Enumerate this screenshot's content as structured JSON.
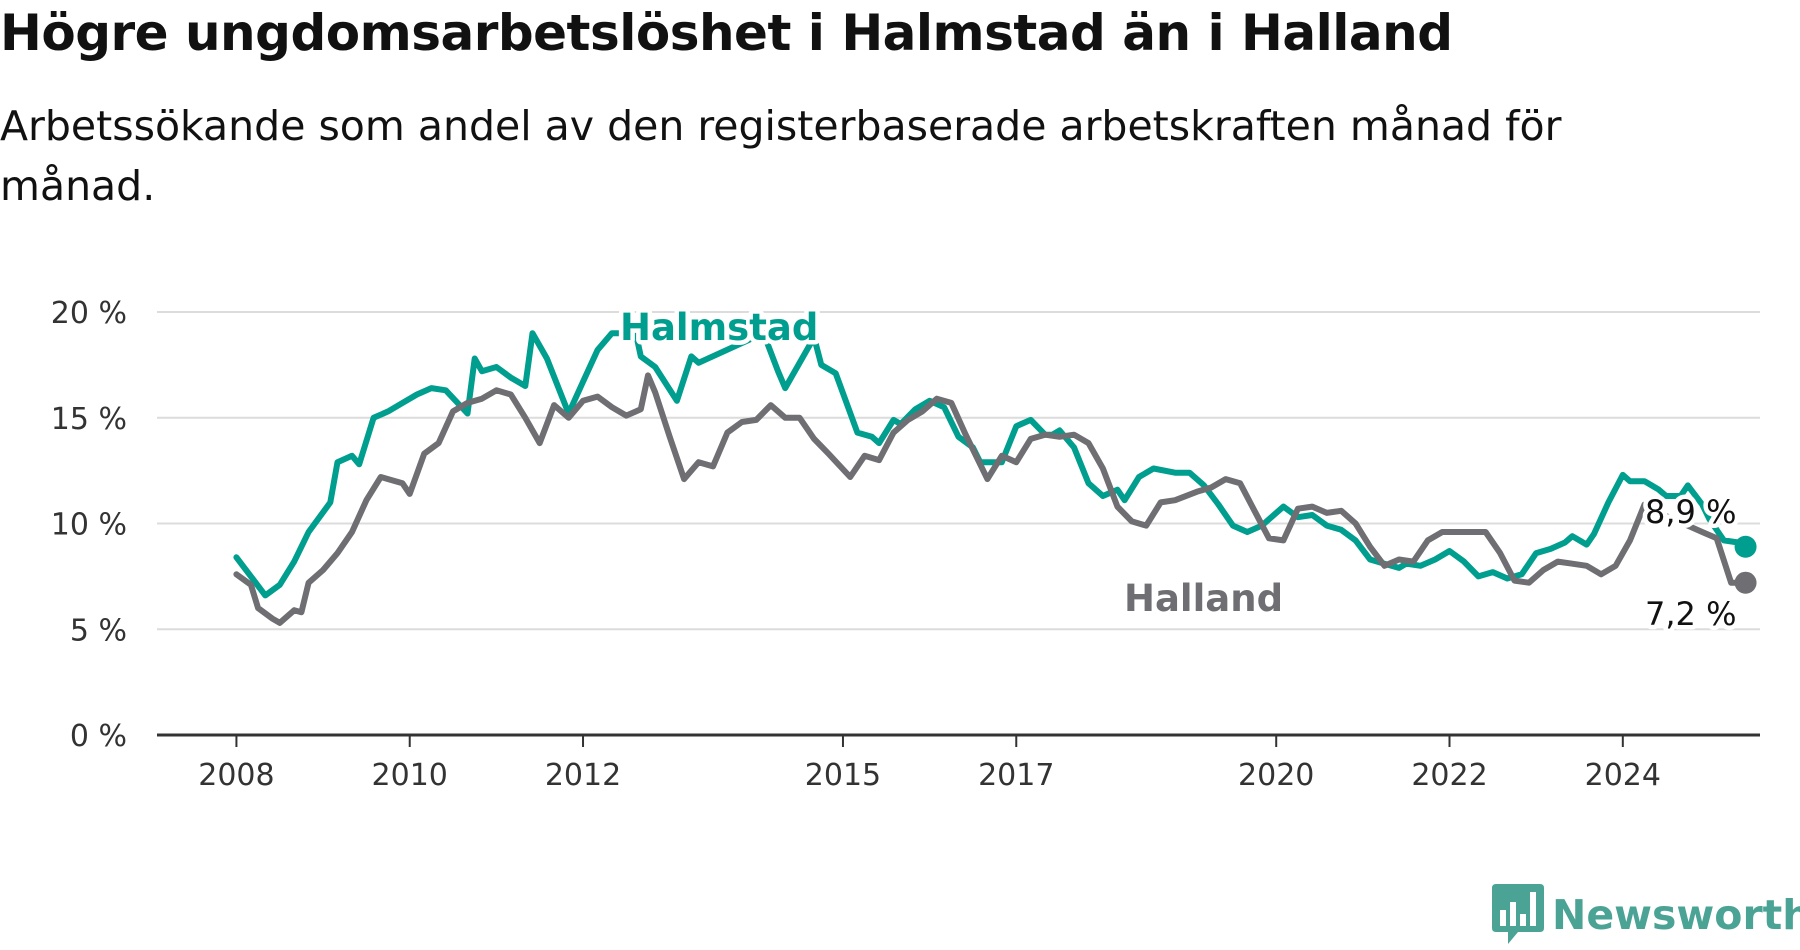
{
  "title": "Högre ungdomsarbetslöshet i Halmstad än i Halland",
  "subtitle": "Arbetssökande som andel av den registerbaserade arbetskraften månad för månad.",
  "brand": {
    "name": "Newsworthy",
    "logo_icon": "bar-chart-speech-bubble-icon",
    "color": "#4aa394"
  },
  "chart_data": {
    "type": "line",
    "title": "Högre ungdomsarbetslöshet i Halmstad än i Halland",
    "subtitle": "Arbetssökande som andel av den registerbaserade arbetskraften månad för månad.",
    "xlabel": "",
    "ylabel": "",
    "x_ticks": [
      {
        "year": 2008,
        "label": "2008"
      },
      {
        "year": 2010,
        "label": "2010"
      },
      {
        "year": 2012,
        "label": "2012"
      },
      {
        "year": 2015,
        "label": "2015"
      },
      {
        "year": 2017,
        "label": "2017"
      },
      {
        "year": 2020,
        "label": "2020"
      },
      {
        "year": 2022,
        "label": "2022"
      },
      {
        "year": 2024,
        "label": "2024"
      }
    ],
    "y_ticks": [
      {
        "value": 0,
        "label": "0 %"
      },
      {
        "value": 5,
        "label": "5 %"
      },
      {
        "value": 10,
        "label": "10 %"
      },
      {
        "value": 15,
        "label": "15 %"
      },
      {
        "value": 20,
        "label": "20 %"
      }
    ],
    "xlim": [
      "2007-02",
      "2025-08"
    ],
    "ylim": [
      0,
      20
    ],
    "grid": "horizontal",
    "series": [
      {
        "name": "Halmstad",
        "color": "#009e8e",
        "end_label": "8,9 %",
        "values": [
          [
            "2008-01",
            8.4
          ],
          [
            "2008-03",
            7.5
          ],
          [
            "2008-05",
            6.6
          ],
          [
            "2008-07",
            7.1
          ],
          [
            "2008-09",
            8.2
          ],
          [
            "2008-11",
            9.6
          ],
          [
            "2009-02",
            11.0
          ],
          [
            "2009-03",
            12.9
          ],
          [
            "2009-05",
            13.2
          ],
          [
            "2009-06",
            12.8
          ],
          [
            "2009-08",
            15.0
          ],
          [
            "2009-10",
            15.3
          ],
          [
            "2009-12",
            15.7
          ],
          [
            "2010-02",
            16.1
          ],
          [
            "2010-04",
            16.4
          ],
          [
            "2010-06",
            16.3
          ],
          [
            "2010-09",
            15.2
          ],
          [
            "2010-10",
            17.8
          ],
          [
            "2010-11",
            17.2
          ],
          [
            "2011-01",
            17.4
          ],
          [
            "2011-03",
            16.9
          ],
          [
            "2011-05",
            16.5
          ],
          [
            "2011-06",
            19.0
          ],
          [
            "2011-08",
            17.8
          ],
          [
            "2011-11",
            15.2
          ],
          [
            "2012-01",
            16.7
          ],
          [
            "2012-03",
            18.2
          ],
          [
            "2012-05",
            19.0
          ],
          [
            "2012-07",
            19.0
          ],
          [
            "2012-08",
            19.5
          ],
          [
            "2012-09",
            17.9
          ],
          [
            "2012-11",
            17.4
          ],
          [
            "2013-02",
            15.8
          ],
          [
            "2013-04",
            17.9
          ],
          [
            "2013-05",
            17.6
          ],
          [
            "2014-02",
            19.0
          ],
          [
            "2014-04",
            17.2
          ],
          [
            "2014-05",
            16.4
          ],
          [
            "2014-09",
            18.8
          ],
          [
            "2014-10",
            17.5
          ],
          [
            "2014-12",
            17.1
          ],
          [
            "2015-03",
            14.3
          ],
          [
            "2015-05",
            14.1
          ],
          [
            "2015-06",
            13.8
          ],
          [
            "2015-08",
            14.9
          ],
          [
            "2015-09",
            14.7
          ],
          [
            "2015-11",
            15.4
          ],
          [
            "2016-01",
            15.8
          ],
          [
            "2016-03",
            15.5
          ],
          [
            "2016-05",
            14.1
          ],
          [
            "2016-07",
            13.6
          ],
          [
            "2016-08",
            12.9
          ],
          [
            "2016-11",
            12.9
          ],
          [
            "2017-01",
            14.6
          ],
          [
            "2017-03",
            14.9
          ],
          [
            "2017-05",
            14.2
          ],
          [
            "2017-06",
            14.2
          ],
          [
            "2017-07",
            14.4
          ],
          [
            "2017-09",
            13.6
          ],
          [
            "2017-11",
            11.9
          ],
          [
            "2018-01",
            11.3
          ],
          [
            "2018-03",
            11.6
          ],
          [
            "2018-04",
            11.1
          ],
          [
            "2018-06",
            12.2
          ],
          [
            "2018-08",
            12.6
          ],
          [
            "2018-11",
            12.4
          ],
          [
            "2019-01",
            12.4
          ],
          [
            "2019-03",
            11.8
          ],
          [
            "2019-05",
            10.9
          ],
          [
            "2019-07",
            9.9
          ],
          [
            "2019-09",
            9.6
          ],
          [
            "2019-11",
            9.9
          ],
          [
            "2020-02",
            10.8
          ],
          [
            "2020-04",
            10.3
          ],
          [
            "2020-06",
            10.4
          ],
          [
            "2020-08",
            9.9
          ],
          [
            "2020-10",
            9.7
          ],
          [
            "2020-12",
            9.2
          ],
          [
            "2021-02",
            8.3
          ],
          [
            "2021-04",
            8.1
          ],
          [
            "2021-06",
            7.9
          ],
          [
            "2021-07",
            8.1
          ],
          [
            "2021-09",
            8.0
          ],
          [
            "2021-11",
            8.3
          ],
          [
            "2022-01",
            8.7
          ],
          [
            "2022-03",
            8.2
          ],
          [
            "2022-05",
            7.5
          ],
          [
            "2022-07",
            7.7
          ],
          [
            "2022-09",
            7.4
          ],
          [
            "2022-11",
            7.6
          ],
          [
            "2023-01",
            8.6
          ],
          [
            "2023-03",
            8.8
          ],
          [
            "2023-05",
            9.1
          ],
          [
            "2023-06",
            9.4
          ],
          [
            "2023-08",
            9.0
          ],
          [
            "2023-09",
            9.5
          ],
          [
            "2023-11",
            11.0
          ],
          [
            "2024-01",
            12.3
          ],
          [
            "2024-02",
            12.0
          ],
          [
            "2024-04",
            12.0
          ],
          [
            "2024-06",
            11.6
          ],
          [
            "2024-07",
            11.3
          ],
          [
            "2024-09",
            11.3
          ],
          [
            "2024-10",
            11.8
          ],
          [
            "2024-12",
            10.9
          ],
          [
            "2025-01",
            10.2
          ],
          [
            "2025-03",
            9.2
          ],
          [
            "2025-05",
            9.1
          ],
          [
            "2025-06",
            8.9
          ]
        ]
      },
      {
        "name": "Halland",
        "color": "#6e6e73",
        "end_label": "7,2 %",
        "values": [
          [
            "2008-01",
            7.6
          ],
          [
            "2008-03",
            7.1
          ],
          [
            "2008-04",
            6.0
          ],
          [
            "2008-06",
            5.5
          ],
          [
            "2008-07",
            5.3
          ],
          [
            "2008-09",
            5.9
          ],
          [
            "2008-10",
            5.8
          ],
          [
            "2008-11",
            7.2
          ],
          [
            "2009-01",
            7.8
          ],
          [
            "2009-03",
            8.6
          ],
          [
            "2009-05",
            9.6
          ],
          [
            "2009-07",
            11.1
          ],
          [
            "2009-09",
            12.2
          ],
          [
            "2009-10",
            12.1
          ],
          [
            "2009-12",
            11.9
          ],
          [
            "2010-01",
            11.4
          ],
          [
            "2010-03",
            13.3
          ],
          [
            "2010-05",
            13.8
          ],
          [
            "2010-07",
            15.3
          ],
          [
            "2010-09",
            15.7
          ],
          [
            "2010-11",
            15.9
          ],
          [
            "2011-01",
            16.3
          ],
          [
            "2011-03",
            16.1
          ],
          [
            "2011-05",
            15.0
          ],
          [
            "2011-07",
            13.8
          ],
          [
            "2011-09",
            15.6
          ],
          [
            "2011-11",
            15.0
          ],
          [
            "2012-01",
            15.8
          ],
          [
            "2012-03",
            16.0
          ],
          [
            "2012-05",
            15.5
          ],
          [
            "2012-07",
            15.1
          ],
          [
            "2012-09",
            15.4
          ],
          [
            "2012-10",
            17.0
          ],
          [
            "2012-11",
            16.2
          ],
          [
            "2013-01",
            14.1
          ],
          [
            "2013-03",
            12.1
          ],
          [
            "2013-05",
            12.9
          ],
          [
            "2013-07",
            12.7
          ],
          [
            "2013-09",
            14.3
          ],
          [
            "2013-11",
            14.8
          ],
          [
            "2014-01",
            14.9
          ],
          [
            "2014-03",
            15.6
          ],
          [
            "2014-05",
            15.0
          ],
          [
            "2014-07",
            15.0
          ],
          [
            "2014-09",
            14.0
          ],
          [
            "2014-11",
            13.3
          ],
          [
            "2015-02",
            12.2
          ],
          [
            "2015-04",
            13.2
          ],
          [
            "2015-06",
            13.0
          ],
          [
            "2015-08",
            14.3
          ],
          [
            "2015-10",
            14.9
          ],
          [
            "2015-12",
            15.3
          ],
          [
            "2016-02",
            15.9
          ],
          [
            "2016-04",
            15.7
          ],
          [
            "2016-06",
            14.2
          ],
          [
            "2016-09",
            12.1
          ],
          [
            "2016-11",
            13.2
          ],
          [
            "2017-01",
            12.9
          ],
          [
            "2017-03",
            14.0
          ],
          [
            "2017-05",
            14.2
          ],
          [
            "2017-07",
            14.1
          ],
          [
            "2017-09",
            14.2
          ],
          [
            "2017-11",
            13.8
          ],
          [
            "2018-01",
            12.6
          ],
          [
            "2018-03",
            10.8
          ],
          [
            "2018-05",
            10.1
          ],
          [
            "2018-07",
            9.9
          ],
          [
            "2018-09",
            11.0
          ],
          [
            "2018-11",
            11.1
          ],
          [
            "2019-02",
            11.5
          ],
          [
            "2019-04",
            11.7
          ],
          [
            "2019-06",
            12.1
          ],
          [
            "2019-08",
            11.9
          ],
          [
            "2019-10",
            10.6
          ],
          [
            "2019-12",
            9.3
          ],
          [
            "2020-02",
            9.2
          ],
          [
            "2020-04",
            10.7
          ],
          [
            "2020-06",
            10.8
          ],
          [
            "2020-08",
            10.5
          ],
          [
            "2020-10",
            10.6
          ],
          [
            "2020-12",
            10.0
          ],
          [
            "2021-02",
            8.9
          ],
          [
            "2021-04",
            8.0
          ],
          [
            "2021-06",
            8.3
          ],
          [
            "2021-08",
            8.2
          ],
          [
            "2021-10",
            9.2
          ],
          [
            "2021-12",
            9.6
          ],
          [
            "2022-02",
            9.6
          ],
          [
            "2022-04",
            9.6
          ],
          [
            "2022-06",
            9.6
          ],
          [
            "2022-08",
            8.6
          ],
          [
            "2022-10",
            7.3
          ],
          [
            "2022-12",
            7.2
          ],
          [
            "2023-02",
            7.8
          ],
          [
            "2023-04",
            8.2
          ],
          [
            "2023-06",
            8.1
          ],
          [
            "2023-08",
            8.0
          ],
          [
            "2023-10",
            7.6
          ],
          [
            "2023-12",
            8.0
          ],
          [
            "2024-02",
            9.2
          ],
          [
            "2024-04",
            10.9
          ],
          [
            "2024-06",
            10.5
          ],
          [
            "2024-08",
            10.2
          ],
          [
            "2024-10",
            9.9
          ],
          [
            "2024-12",
            9.6
          ],
          [
            "2025-02",
            9.3
          ],
          [
            "2025-04",
            7.2
          ],
          [
            "2025-06",
            7.2
          ]
        ]
      }
    ],
    "annotations": [
      {
        "text": "Halmstad",
        "series": "Halmstad",
        "color": "#009e8e"
      },
      {
        "text": "Halland",
        "series": "Halland",
        "color": "#6e6e73"
      }
    ]
  }
}
